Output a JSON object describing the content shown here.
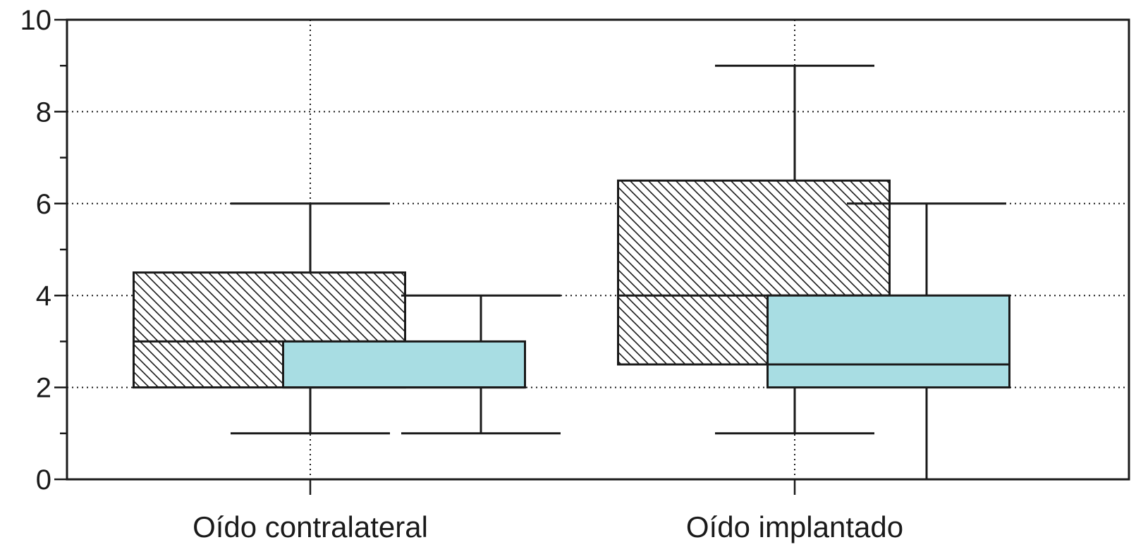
{
  "chart_data": {
    "type": "box",
    "categories": [
      "Oído contralateral",
      "Oído implantado"
    ],
    "y_ticks": [
      0,
      2,
      4,
      6,
      8,
      10
    ],
    "ylim": [
      0,
      10
    ],
    "grid": true,
    "series": [
      {
        "style": "hatched",
        "color": "#ffffff",
        "boxes": [
          {
            "category": "Oído contralateral",
            "whisker_low": 1,
            "q1": 2,
            "median": 3,
            "q3": 4.5,
            "whisker_high": 6
          },
          {
            "category": "Oído implantado",
            "whisker_low": 1,
            "q1": 2.5,
            "median": 4,
            "q3": 6.5,
            "whisker_high": 9
          }
        ]
      },
      {
        "style": "filled",
        "color": "#a8dde3",
        "boxes": [
          {
            "category": "Oído contralateral",
            "whisker_low": 1,
            "q1": 2,
            "median": 2,
            "q3": 3,
            "whisker_high": 4
          },
          {
            "category": "Oído implantado",
            "whisker_low": 0,
            "q1": 2,
            "median": 2.5,
            "q3": 4,
            "whisker_high": 6
          }
        ]
      }
    ]
  }
}
